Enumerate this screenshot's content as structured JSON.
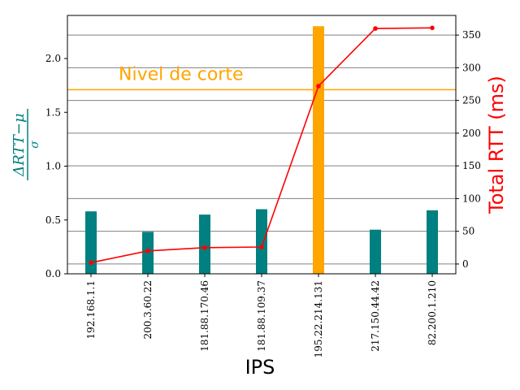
{
  "chart_data": {
    "type": "bar",
    "categories": [
      "192.168.1.1",
      "200.3.60.22",
      "181.88.170.46",
      "181.88.109.37",
      "195.22.214.131",
      "217.150.44.42",
      "82.200.1.210"
    ],
    "series": [
      {
        "axis": "left",
        "kind": "bar",
        "values": [
          0.58,
          0.39,
          0.55,
          0.6,
          2.3,
          0.41,
          0.59
        ]
      },
      {
        "axis": "right",
        "kind": "line",
        "values": [
          2,
          20,
          25,
          26,
          272,
          360,
          361
        ]
      }
    ],
    "highlight_index": 4,
    "threshold": {
      "value": 1.71,
      "label": "Nivel de corte"
    },
    "xlabel": "IPS",
    "ylabel_left": {
      "numerator": "ΔRTT−μ",
      "denominator": "σ"
    },
    "ylabel_right": "Total RTT (ms)",
    "ylim_left": [
      0,
      2.4
    ],
    "ylim_right": [
      -15,
      380
    ],
    "left_ticks": [
      "0.0",
      "0.5",
      "1.0",
      "1.5",
      "2.0"
    ],
    "right_ticks": [
      "0",
      "50",
      "100",
      "150",
      "200",
      "250",
      "300",
      "350"
    ],
    "grid": "horizontal, right axis",
    "colors": {
      "bar": "#008080",
      "highlight": "#ffa500",
      "line": "#ff0000",
      "threshold": "#ffa500",
      "grid": "#808080",
      "left_label": "#008080",
      "right_label": "#ff0000"
    }
  }
}
